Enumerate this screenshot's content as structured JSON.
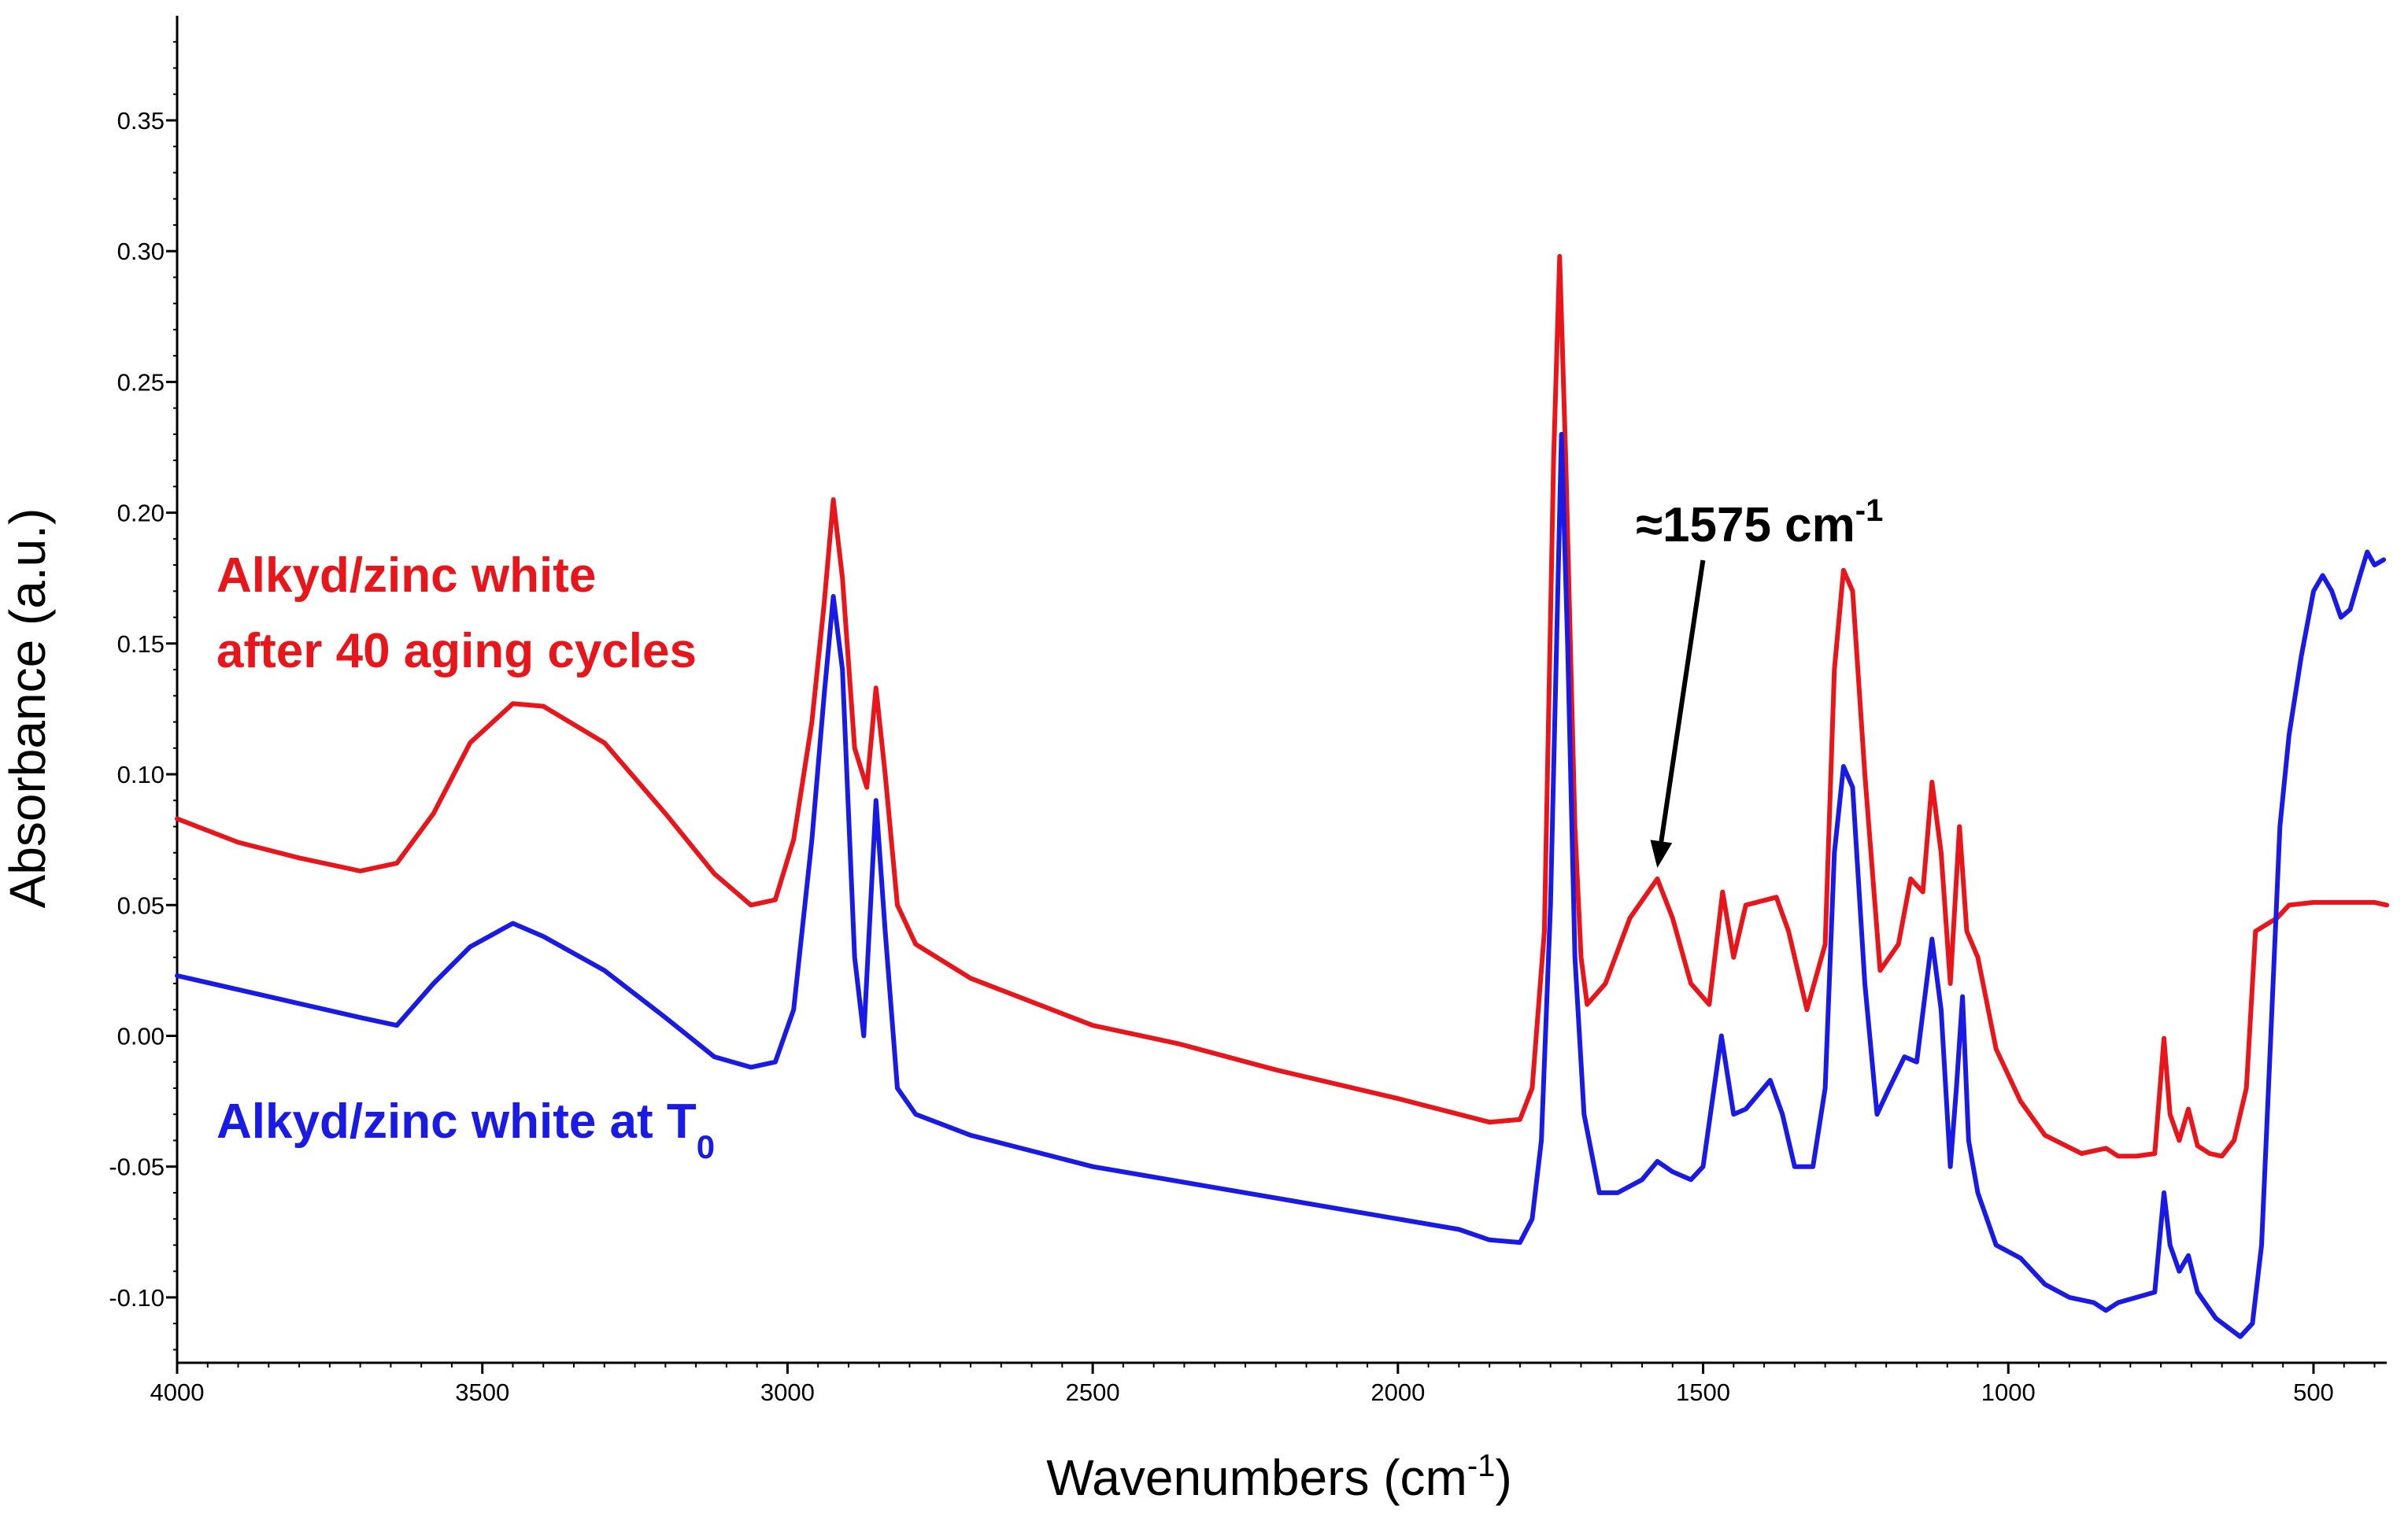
{
  "chart_data": {
    "type": "line",
    "title": "",
    "xlabel_main": "Wavenumbers (cm",
    "xlabel_sup": "-1",
    "xlabel_end": ")",
    "ylabel": "Absorbance (a.u.)",
    "xlim": [
      4000,
      380
    ],
    "ylim": [
      -0.125,
      0.39
    ],
    "x_ticks": [
      4000,
      3500,
      3000,
      2500,
      2000,
      1500,
      1000,
      500
    ],
    "y_ticks": [
      0.35,
      0.3,
      0.25,
      0.2,
      0.15,
      0.1,
      0.05,
      0.0,
      -0.05,
      -0.1
    ],
    "y_tick_labels": [
      "0.35",
      "0.30",
      "0.25",
      "0.20",
      "0.15",
      "0.10",
      "0.05",
      "0.00",
      "-0.05",
      "-0.10"
    ],
    "series": [
      {
        "name": "Alkyd/zinc white after 40 aging cycles",
        "color": "#e8161b",
        "points": [
          [
            4000,
            0.083
          ],
          [
            3900,
            0.074
          ],
          [
            3800,
            0.068
          ],
          [
            3700,
            0.063
          ],
          [
            3640,
            0.066
          ],
          [
            3580,
            0.085
          ],
          [
            3520,
            0.112
          ],
          [
            3450,
            0.127
          ],
          [
            3400,
            0.126
          ],
          [
            3300,
            0.112
          ],
          [
            3200,
            0.085
          ],
          [
            3120,
            0.062
          ],
          [
            3060,
            0.05
          ],
          [
            3020,
            0.052
          ],
          [
            2990,
            0.075
          ],
          [
            2960,
            0.12
          ],
          [
            2940,
            0.165
          ],
          [
            2925,
            0.205
          ],
          [
            2910,
            0.175
          ],
          [
            2890,
            0.11
          ],
          [
            2870,
            0.095
          ],
          [
            2855,
            0.133
          ],
          [
            2840,
            0.1
          ],
          [
            2820,
            0.05
          ],
          [
            2790,
            0.035
          ],
          [
            2700,
            0.022
          ],
          [
            2500,
            0.004
          ],
          [
            2360,
            -0.003
          ],
          [
            2200,
            -0.013
          ],
          [
            2000,
            -0.024
          ],
          [
            1850,
            -0.033
          ],
          [
            1800,
            -0.032
          ],
          [
            1780,
            -0.02
          ],
          [
            1760,
            0.04
          ],
          [
            1745,
            0.22
          ],
          [
            1735,
            0.298
          ],
          [
            1725,
            0.22
          ],
          [
            1710,
            0.08
          ],
          [
            1700,
            0.03
          ],
          [
            1690,
            0.012
          ],
          [
            1660,
            0.02
          ],
          [
            1620,
            0.045
          ],
          [
            1590,
            0.055
          ],
          [
            1575,
            0.06
          ],
          [
            1550,
            0.045
          ],
          [
            1520,
            0.02
          ],
          [
            1490,
            0.012
          ],
          [
            1468,
            0.055
          ],
          [
            1450,
            0.03
          ],
          [
            1430,
            0.05
          ],
          [
            1380,
            0.053
          ],
          [
            1360,
            0.04
          ],
          [
            1330,
            0.01
          ],
          [
            1300,
            0.035
          ],
          [
            1285,
            0.14
          ],
          [
            1270,
            0.178
          ],
          [
            1255,
            0.17
          ],
          [
            1235,
            0.1
          ],
          [
            1210,
            0.025
          ],
          [
            1180,
            0.035
          ],
          [
            1160,
            0.06
          ],
          [
            1140,
            0.055
          ],
          [
            1125,
            0.097
          ],
          [
            1110,
            0.07
          ],
          [
            1095,
            0.02
          ],
          [
            1080,
            0.08
          ],
          [
            1068,
            0.04
          ],
          [
            1050,
            0.03
          ],
          [
            1020,
            -0.005
          ],
          [
            980,
            -0.025
          ],
          [
            940,
            -0.038
          ],
          [
            880,
            -0.045
          ],
          [
            840,
            -0.043
          ],
          [
            820,
            -0.046
          ],
          [
            790,
            -0.046
          ],
          [
            760,
            -0.045
          ],
          [
            745,
            -0.001
          ],
          [
            735,
            -0.03
          ],
          [
            720,
            -0.04
          ],
          [
            705,
            -0.028
          ],
          [
            690,
            -0.042
          ],
          [
            670,
            -0.045
          ],
          [
            650,
            -0.046
          ],
          [
            630,
            -0.04
          ],
          [
            610,
            -0.02
          ],
          [
            595,
            0.04
          ],
          [
            560,
            0.045
          ],
          [
            540,
            0.05
          ],
          [
            500,
            0.051
          ],
          [
            450,
            0.051
          ],
          [
            400,
            0.051
          ],
          [
            380,
            0.05
          ]
        ]
      },
      {
        "name": "Alkyd/zinc white at T0",
        "color": "#1a1ae6",
        "points": [
          [
            4000,
            0.023
          ],
          [
            3850,
            0.015
          ],
          [
            3700,
            0.007
          ],
          [
            3640,
            0.004
          ],
          [
            3580,
            0.02
          ],
          [
            3520,
            0.034
          ],
          [
            3450,
            0.043
          ],
          [
            3400,
            0.038
          ],
          [
            3300,
            0.025
          ],
          [
            3200,
            0.007
          ],
          [
            3120,
            -0.008
          ],
          [
            3060,
            -0.012
          ],
          [
            3020,
            -0.01
          ],
          [
            2990,
            0.01
          ],
          [
            2960,
            0.075
          ],
          [
            2940,
            0.13
          ],
          [
            2925,
            0.168
          ],
          [
            2910,
            0.14
          ],
          [
            2890,
            0.03
          ],
          [
            2875,
            0.0
          ],
          [
            2855,
            0.09
          ],
          [
            2840,
            0.04
          ],
          [
            2820,
            -0.02
          ],
          [
            2790,
            -0.03
          ],
          [
            2700,
            -0.038
          ],
          [
            2500,
            -0.05
          ],
          [
            2300,
            -0.058
          ],
          [
            2100,
            -0.066
          ],
          [
            1900,
            -0.074
          ],
          [
            1850,
            -0.078
          ],
          [
            1800,
            -0.079
          ],
          [
            1780,
            -0.07
          ],
          [
            1765,
            -0.04
          ],
          [
            1750,
            0.05
          ],
          [
            1740,
            0.15
          ],
          [
            1732,
            0.23
          ],
          [
            1722,
            0.15
          ],
          [
            1710,
            0.03
          ],
          [
            1695,
            -0.03
          ],
          [
            1670,
            -0.06
          ],
          [
            1640,
            -0.06
          ],
          [
            1600,
            -0.055
          ],
          [
            1575,
            -0.048
          ],
          [
            1550,
            -0.052
          ],
          [
            1520,
            -0.055
          ],
          [
            1500,
            -0.05
          ],
          [
            1470,
            0.0
          ],
          [
            1450,
            -0.03
          ],
          [
            1430,
            -0.028
          ],
          [
            1390,
            -0.017
          ],
          [
            1370,
            -0.03
          ],
          [
            1350,
            -0.05
          ],
          [
            1320,
            -0.05
          ],
          [
            1300,
            -0.02
          ],
          [
            1285,
            0.07
          ],
          [
            1270,
            0.103
          ],
          [
            1255,
            0.095
          ],
          [
            1235,
            0.02
          ],
          [
            1215,
            -0.03
          ],
          [
            1195,
            -0.02
          ],
          [
            1170,
            -0.008
          ],
          [
            1150,
            -0.01
          ],
          [
            1125,
            0.037
          ],
          [
            1110,
            0.01
          ],
          [
            1095,
            -0.05
          ],
          [
            1085,
            -0.02
          ],
          [
            1075,
            0.015
          ],
          [
            1065,
            -0.04
          ],
          [
            1050,
            -0.06
          ],
          [
            1020,
            -0.08
          ],
          [
            980,
            -0.085
          ],
          [
            940,
            -0.095
          ],
          [
            900,
            -0.1
          ],
          [
            860,
            -0.102
          ],
          [
            840,
            -0.105
          ],
          [
            820,
            -0.102
          ],
          [
            790,
            -0.1
          ],
          [
            760,
            -0.098
          ],
          [
            745,
            -0.06
          ],
          [
            735,
            -0.08
          ],
          [
            720,
            -0.09
          ],
          [
            705,
            -0.084
          ],
          [
            690,
            -0.098
          ],
          [
            660,
            -0.108
          ],
          [
            620,
            -0.115
          ],
          [
            600,
            -0.11
          ],
          [
            585,
            -0.08
          ],
          [
            570,
            0.0
          ],
          [
            555,
            0.08
          ],
          [
            540,
            0.115
          ],
          [
            520,
            0.145
          ],
          [
            500,
            0.17
          ],
          [
            485,
            0.176
          ],
          [
            470,
            0.17
          ],
          [
            455,
            0.16
          ],
          [
            440,
            0.163
          ],
          [
            425,
            0.175
          ],
          [
            412,
            0.185
          ],
          [
            400,
            0.18
          ],
          [
            385,
            0.182
          ]
        ]
      }
    ],
    "annotations": {
      "red_label_line1": "Alkyd/zinc white",
      "red_label_line2": "after 40 aging cycles",
      "blue_label_main": "Alkyd/zinc white at T",
      "blue_label_sub": "0",
      "peak_label_main": "≈1575 cm",
      "peak_label_sup": "-1",
      "peak_x": 1575,
      "peak_y": 0.06
    }
  }
}
